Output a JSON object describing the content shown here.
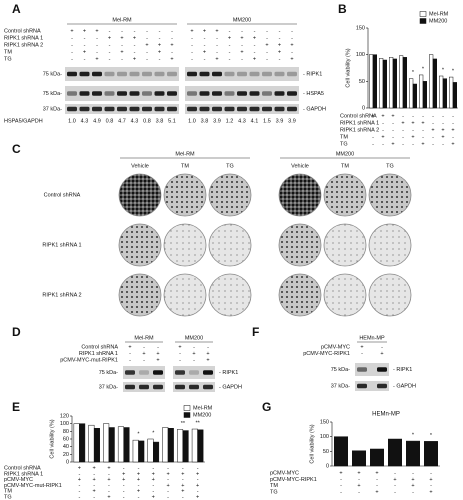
{
  "panel_labels": [
    "A",
    "B",
    "C",
    "D",
    "E",
    "F",
    "G"
  ],
  "blot_a": {
    "groups": [
      "Mel-RM",
      "MM200"
    ],
    "rows": [
      {
        "label": "Control shRNA",
        "signs": [
          "+",
          "+",
          "+",
          "-",
          "-",
          "-",
          "-",
          "-",
          "-",
          "+",
          "+",
          "+",
          "-",
          "-",
          "-",
          "-",
          "-",
          "-"
        ]
      },
      {
        "label": "RIPK1 shRNA 1",
        "signs": [
          "-",
          "-",
          "-",
          "+",
          "+",
          "+",
          "-",
          "-",
          "-",
          "-",
          "-",
          "-",
          "+",
          "+",
          "+",
          "-",
          "-",
          "-"
        ]
      },
      {
        "label": "RIPK1 shRNA 2",
        "signs": [
          "-",
          "-",
          "-",
          "-",
          "-",
          "-",
          "+",
          "+",
          "+",
          "-",
          "-",
          "-",
          "-",
          "-",
          "-",
          "+",
          "+",
          "+"
        ]
      },
      {
        "label": "TM",
        "signs": [
          "-",
          "+",
          "-",
          "-",
          "+",
          "-",
          "-",
          "+",
          "-",
          "-",
          "+",
          "-",
          "-",
          "+",
          "-",
          "-",
          "+",
          "-"
        ]
      },
      {
        "label": "TG",
        "signs": [
          "-",
          "-",
          "+",
          "-",
          "-",
          "+",
          "-",
          "-",
          "+",
          "-",
          "-",
          "+",
          "-",
          "-",
          "+",
          "-",
          "-",
          "+"
        ]
      }
    ],
    "bands": [
      {
        "marker": "75 kDa-",
        "name": "- RIPK1"
      },
      {
        "marker": "75 kDa-",
        "name": "- HSPA5"
      },
      {
        "marker": "37 kDa-",
        "name": "- GAPDH"
      }
    ],
    "ratio_label": "HSPA5/GAPDH",
    "ratios": [
      "1.0",
      "4.3",
      "4.9",
      "0.8",
      "4.7",
      "4.3",
      "0.8",
      "3.8",
      "5.1",
      "1.0",
      "3.8",
      "3.9",
      "1.2",
      "4.3",
      "4.1",
      "1.5",
      "3.9",
      "3.9"
    ]
  },
  "colony_c": {
    "groups": [
      {
        "name": "Mel-RM",
        "conditions": [
          "Vehicle",
          "TM",
          "TG"
        ]
      },
      {
        "name": "MM200",
        "conditions": [
          "Vehicle",
          "TM",
          "TG"
        ]
      }
    ],
    "rows": [
      "Control shRNA",
      "RIPK1 shRNA 1",
      "RIPK1 shRNA 2"
    ]
  },
  "blot_d": {
    "groups": [
      "Mel-RM",
      "MM200"
    ],
    "rows": [
      {
        "label": "Control shRNA",
        "signs": [
          "+",
          "-",
          "-",
          "+",
          "-",
          "-"
        ]
      },
      {
        "label": "RIPK1 shRNA 1",
        "signs": [
          "-",
          "+",
          "+",
          "-",
          "+",
          "+"
        ]
      },
      {
        "label": "pCMV-MYC-mut-RIPK1",
        "signs": [
          "-",
          "-",
          "+",
          "-",
          "-",
          "+"
        ]
      }
    ],
    "bands": [
      {
        "marker": "75 kDa-",
        "name": "- RIPK1"
      },
      {
        "marker": "37 kDa-",
        "name": "- GAPDH"
      }
    ]
  },
  "blot_f": {
    "groups": [
      "HEMn-MP"
    ],
    "rows": [
      {
        "label": "pCMV-MYC",
        "signs": [
          "+",
          "-"
        ]
      },
      {
        "label": "pCMV-MYC-RIPK1",
        "signs": [
          "-",
          "+"
        ]
      }
    ],
    "bands": [
      {
        "marker": "75 kDa-",
        "name": "- RIPK1"
      },
      {
        "marker": "37 kDa-",
        "name": "- GAPDH"
      }
    ]
  },
  "chart_data": [
    {
      "type": "bar",
      "y_label": "Cell viability (%)",
      "ylim": [
        0,
        150
      ],
      "yticks": [
        0,
        50,
        100,
        150
      ],
      "series": [
        {
          "name": "Mel-RM",
          "color": "#ffffff",
          "values": [
            100,
            93,
            95,
            98,
            55,
            62,
            100,
            60,
            58
          ]
        },
        {
          "name": "MM200",
          "color": "#111111",
          "values": [
            100,
            90,
            92,
            95,
            45,
            50,
            92,
            55,
            48
          ]
        }
      ],
      "conditions": [
        {
          "label": "Control shRNA",
          "signs": [
            "+",
            "+",
            "+",
            "-",
            "-",
            "-",
            "-",
            "-",
            "-"
          ]
        },
        {
          "label": "RIPK1 shRNA 1",
          "signs": [
            "-",
            "-",
            "-",
            "+",
            "+",
            "+",
            "-",
            "-",
            "-"
          ]
        },
        {
          "label": "RIPK1 shRNA 2",
          "signs": [
            "-",
            "-",
            "-",
            "-",
            "-",
            "-",
            "+",
            "+",
            "+"
          ]
        },
        {
          "label": "TM",
          "signs": [
            "-",
            "+",
            "-",
            "-",
            "+",
            "-",
            "-",
            "+",
            "-"
          ]
        },
        {
          "label": "TG",
          "signs": [
            "-",
            "-",
            "+",
            "-",
            "-",
            "+",
            "-",
            "-",
            "+"
          ]
        }
      ],
      "annotations": [
        {
          "text": "*",
          "index": 4
        },
        {
          "text": "*",
          "index": 5
        },
        {
          "text": "*",
          "index": 7
        },
        {
          "text": "*",
          "index": 8
        }
      ]
    },
    {
      "type": "bar",
      "y_label": "Cell viability (%)",
      "ylim": [
        0,
        120
      ],
      "yticks": [
        0,
        20,
        40,
        60,
        80,
        100,
        120
      ],
      "series": [
        {
          "name": "Mel-RM",
          "color": "#ffffff",
          "values": [
            100,
            96,
            100,
            92,
            57,
            60,
            90,
            85,
            86
          ]
        },
        {
          "name": "MM200",
          "color": "#111111",
          "values": [
            100,
            88,
            90,
            90,
            55,
            52,
            88,
            82,
            84
          ]
        }
      ],
      "conditions": [
        {
          "label": "Control shRNA",
          "signs": [
            "+",
            "+",
            "+",
            "-",
            "-",
            "-",
            "-",
            "-",
            "-"
          ]
        },
        {
          "label": "RIPK1 shRNA 1",
          "signs": [
            "-",
            "-",
            "-",
            "+",
            "+",
            "+",
            "+",
            "+",
            "+"
          ]
        },
        {
          "label": "pCMV-MYC",
          "signs": [
            "+",
            "+",
            "+",
            "+",
            "+",
            "+",
            "-",
            "-",
            "-"
          ]
        },
        {
          "label": "pCMV-MYC-mut-RIPK1",
          "signs": [
            "-",
            "-",
            "-",
            "-",
            "-",
            "-",
            "+",
            "+",
            "+"
          ]
        },
        {
          "label": "TM",
          "signs": [
            "-",
            "+",
            "-",
            "-",
            "+",
            "-",
            "-",
            "+",
            "-"
          ]
        },
        {
          "label": "TG",
          "signs": [
            "-",
            "-",
            "+",
            "-",
            "-",
            "+",
            "-",
            "-",
            "+"
          ]
        }
      ],
      "annotations": [
        {
          "text": "*",
          "index": 4
        },
        {
          "text": "*",
          "index": 5
        },
        {
          "text": "**",
          "index": 7
        },
        {
          "text": "**",
          "index": 8
        }
      ]
    },
    {
      "type": "bar",
      "title": "HEMn-MP",
      "y_label": "Cell viability (%)",
      "ylim": [
        0,
        150
      ],
      "yticks": [
        0,
        50,
        100,
        150
      ],
      "series": [
        {
          "color": "#111111",
          "values": [
            100,
            52,
            58,
            92,
            85,
            84
          ]
        }
      ],
      "conditions": [
        {
          "label": "pCMV-MYC",
          "signs": [
            "+",
            "+",
            "+",
            "-",
            "-",
            "-"
          ]
        },
        {
          "label": "pCMV-MYC-RIPK1",
          "signs": [
            "-",
            "-",
            "-",
            "+",
            "+",
            "+"
          ]
        },
        {
          "label": "TM",
          "signs": [
            "-",
            "+",
            "-",
            "-",
            "+",
            "-"
          ]
        },
        {
          "label": "TG",
          "signs": [
            "-",
            "-",
            "+",
            "-",
            "-",
            "+"
          ]
        }
      ],
      "annotations": [
        {
          "text": "*",
          "index": 4
        },
        {
          "text": "*",
          "index": 5
        }
      ]
    }
  ]
}
